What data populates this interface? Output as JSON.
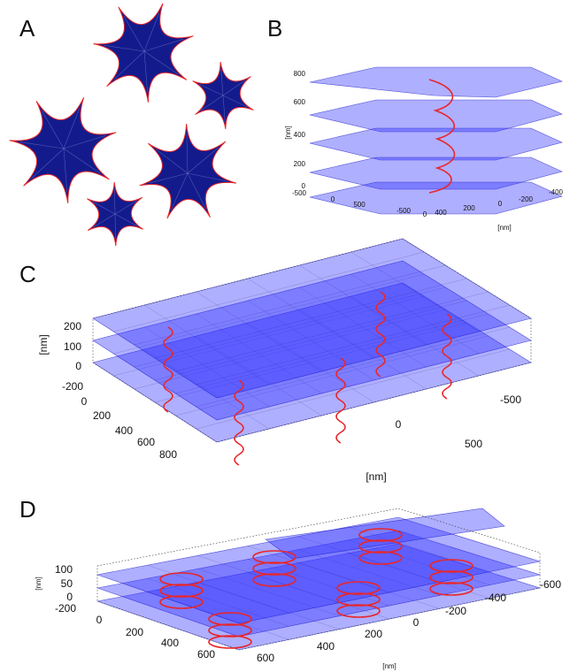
{
  "panels": [
    {
      "label": "A"
    },
    {
      "label": "B",
      "z_label": "[nm]",
      "z_ticks": [
        "800",
        "600",
        "400",
        "200",
        "0"
      ],
      "x_ticks": [
        "-500",
        "0",
        "500",
        "-500",
        "0"
      ],
      "y_ticks": [
        "400",
        "200",
        "0",
        "-200",
        "-400"
      ],
      "xy_label": "[nm]"
    },
    {
      "label": "C",
      "z_label": "[nm]",
      "z_ticks": [
        "200",
        "100",
        "0"
      ],
      "x_ticks": [
        "-200",
        "0",
        "200",
        "400",
        "600",
        "800"
      ],
      "y_ticks": [
        "500",
        "0",
        "-500"
      ],
      "xy_label": "[nm]"
    },
    {
      "label": "D",
      "z_label": "[nm]",
      "z_ticks": [
        "100",
        "50",
        "0"
      ],
      "x_ticks": [
        "-200",
        "0",
        "200",
        "400",
        "600"
      ],
      "y_ticks": [
        "600",
        "400",
        "200",
        "0",
        "-200",
        "-400",
        "-600"
      ],
      "xy_label": "[nm]"
    }
  ]
}
